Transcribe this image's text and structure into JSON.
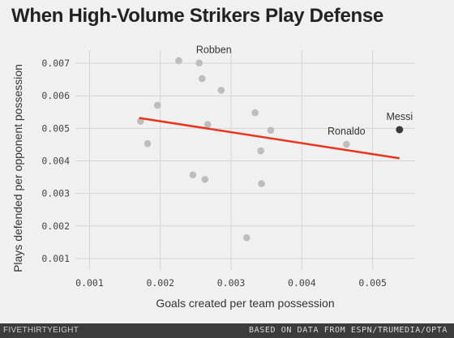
{
  "chart_data": {
    "type": "scatter",
    "title": "When High-Volume Strikers Play Defense",
    "xlabel": "Goals created per team possession",
    "ylabel": "Plays defended per opponent possession",
    "xlim": [
      0.0008,
      0.0056
    ],
    "ylim": [
      0.00065,
      0.0074
    ],
    "xticks": [
      0.001,
      0.002,
      0.003,
      0.004,
      0.005
    ],
    "xtick_labels": [
      "0.001",
      "0.002",
      "0.003",
      "0.004",
      "0.005"
    ],
    "yticks": [
      0.001,
      0.002,
      0.003,
      0.004,
      0.005,
      0.006,
      0.007
    ],
    "ytick_labels": [
      "0.001",
      "0.002",
      "0.003",
      "0.004",
      "0.005",
      "0.006",
      "0.007"
    ],
    "grid": true,
    "points": [
      {
        "x": 0.00226,
        "y": 0.00708
      },
      {
        "x": 0.00255,
        "y": 0.00701,
        "label": "Robben"
      },
      {
        "x": 0.00259,
        "y": 0.00653
      },
      {
        "x": 0.00286,
        "y": 0.00617
      },
      {
        "x": 0.00196,
        "y": 0.00571
      },
      {
        "x": 0.00334,
        "y": 0.00548
      },
      {
        "x": 0.00172,
        "y": 0.00522
      },
      {
        "x": 0.00267,
        "y": 0.00512
      },
      {
        "x": 0.00356,
        "y": 0.00494
      },
      {
        "x": 0.00182,
        "y": 0.00453
      },
      {
        "x": 0.00463,
        "y": 0.00451,
        "label": "Ronaldo"
      },
      {
        "x": 0.00342,
        "y": 0.00431
      },
      {
        "x": 0.00246,
        "y": 0.00357
      },
      {
        "x": 0.00263,
        "y": 0.00343
      },
      {
        "x": 0.00343,
        "y": 0.0033
      },
      {
        "x": 0.00322,
        "y": 0.00164
      },
      {
        "x": 0.00538,
        "y": 0.00496,
        "label": "Messi",
        "highlight": true
      }
    ],
    "trendline": {
      "x": [
        0.0017,
        0.00538
      ],
      "y": [
        0.00532,
        0.00408
      ]
    },
    "colors": {
      "point": "#bdbdbd",
      "highlight": "#3a3a3a",
      "trendline": "#e8341c",
      "grid": "#d4d4d4",
      "background": "#f0f0f0"
    }
  },
  "footer": {
    "logo": "FIVETHIRTYEIGHT",
    "source": "BASED ON DATA FROM ESPN/TRUMEDIA/OPTA"
  }
}
